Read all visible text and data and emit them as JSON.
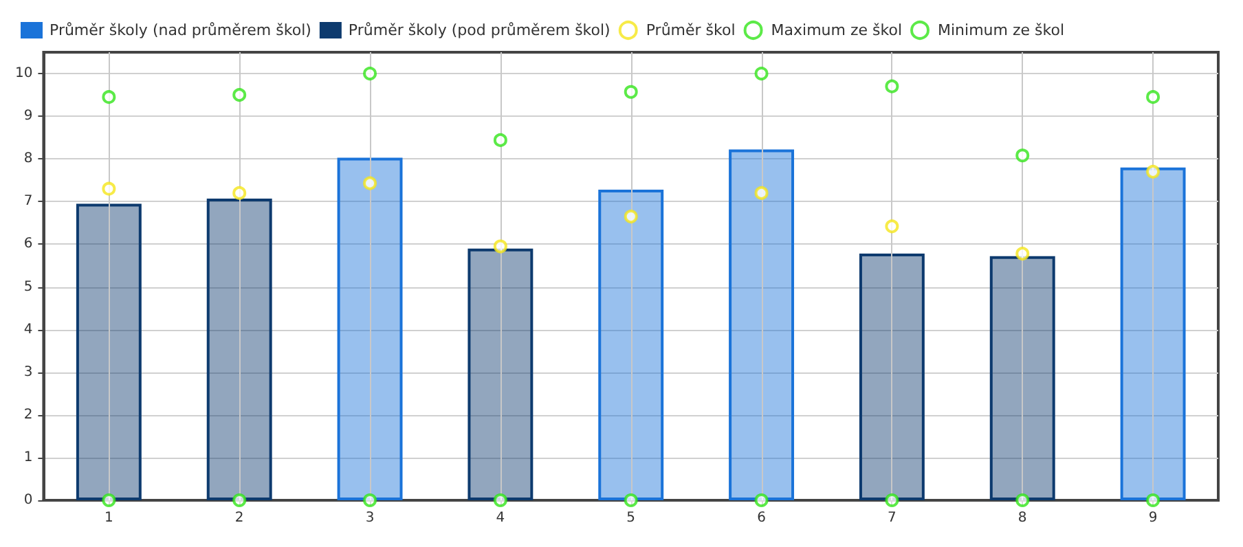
{
  "chart_data": {
    "type": "bar",
    "categories": [
      "1",
      "2",
      "3",
      "4",
      "5",
      "6",
      "7",
      "8",
      "9"
    ],
    "series": [
      {
        "name": "Průměr školy (nad průměrem škol)",
        "color": "#1a73d9",
        "values": [
          null,
          null,
          8.03,
          null,
          7.28,
          8.22,
          null,
          null,
          7.8
        ]
      },
      {
        "name": "Průměr školy (pod průměrem škol)",
        "color": "#0d3a6e",
        "values": [
          6.95,
          7.07,
          null,
          5.9,
          null,
          null,
          5.78,
          5.72,
          null
        ]
      },
      {
        "name": "Průměr škol",
        "type": "scatter",
        "color": "#f5e61a",
        "values": [
          7.3,
          7.2,
          7.43,
          5.95,
          6.65,
          7.2,
          6.42,
          5.78,
          7.7
        ]
      },
      {
        "name": "Maximum ze škol",
        "type": "scatter",
        "color": "#33e51a",
        "values": [
          9.45,
          9.5,
          10,
          8.44,
          9.57,
          10,
          9.7,
          8.08,
          9.45
        ]
      },
      {
        "name": "Minimum ze škol",
        "type": "scatter",
        "color": "#33e51a",
        "values": [
          0,
          0,
          0,
          0,
          0,
          0,
          0,
          0,
          0
        ]
      }
    ],
    "ylim": [
      0,
      10.5
    ],
    "yticks": [
      0,
      1,
      2,
      3,
      4,
      5,
      6,
      7,
      8,
      9,
      10
    ],
    "grid": true,
    "legend": "top left",
    "marker": "circle"
  }
}
